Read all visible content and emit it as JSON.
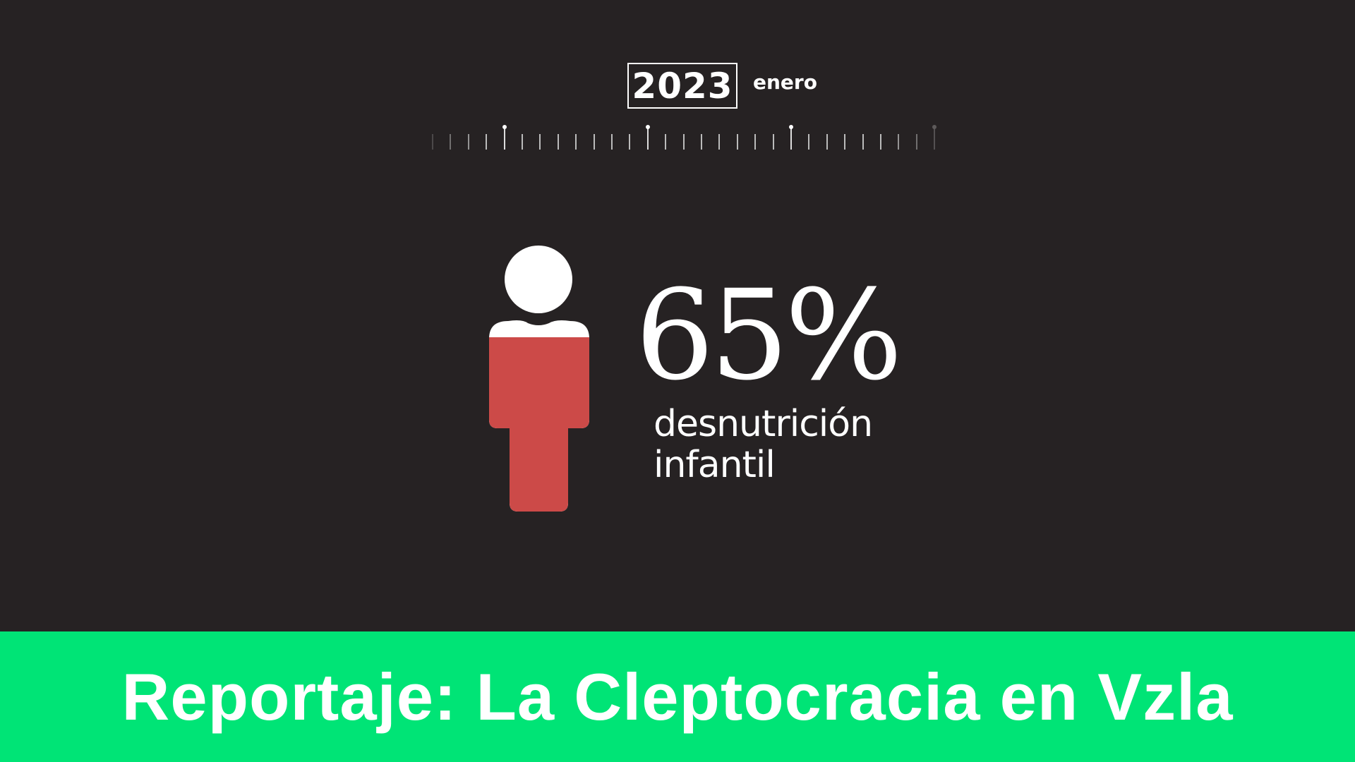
{
  "timeline": {
    "year": "2023",
    "month": "enero"
  },
  "stat": {
    "value": "65%",
    "percent": 65,
    "label_line1": "desnutrición",
    "label_line2": "infantil",
    "fill_color": "#cc4a48"
  },
  "banner": {
    "title": "Reportaje: La Cleptocracia en Vzla",
    "color": "#00e476"
  }
}
